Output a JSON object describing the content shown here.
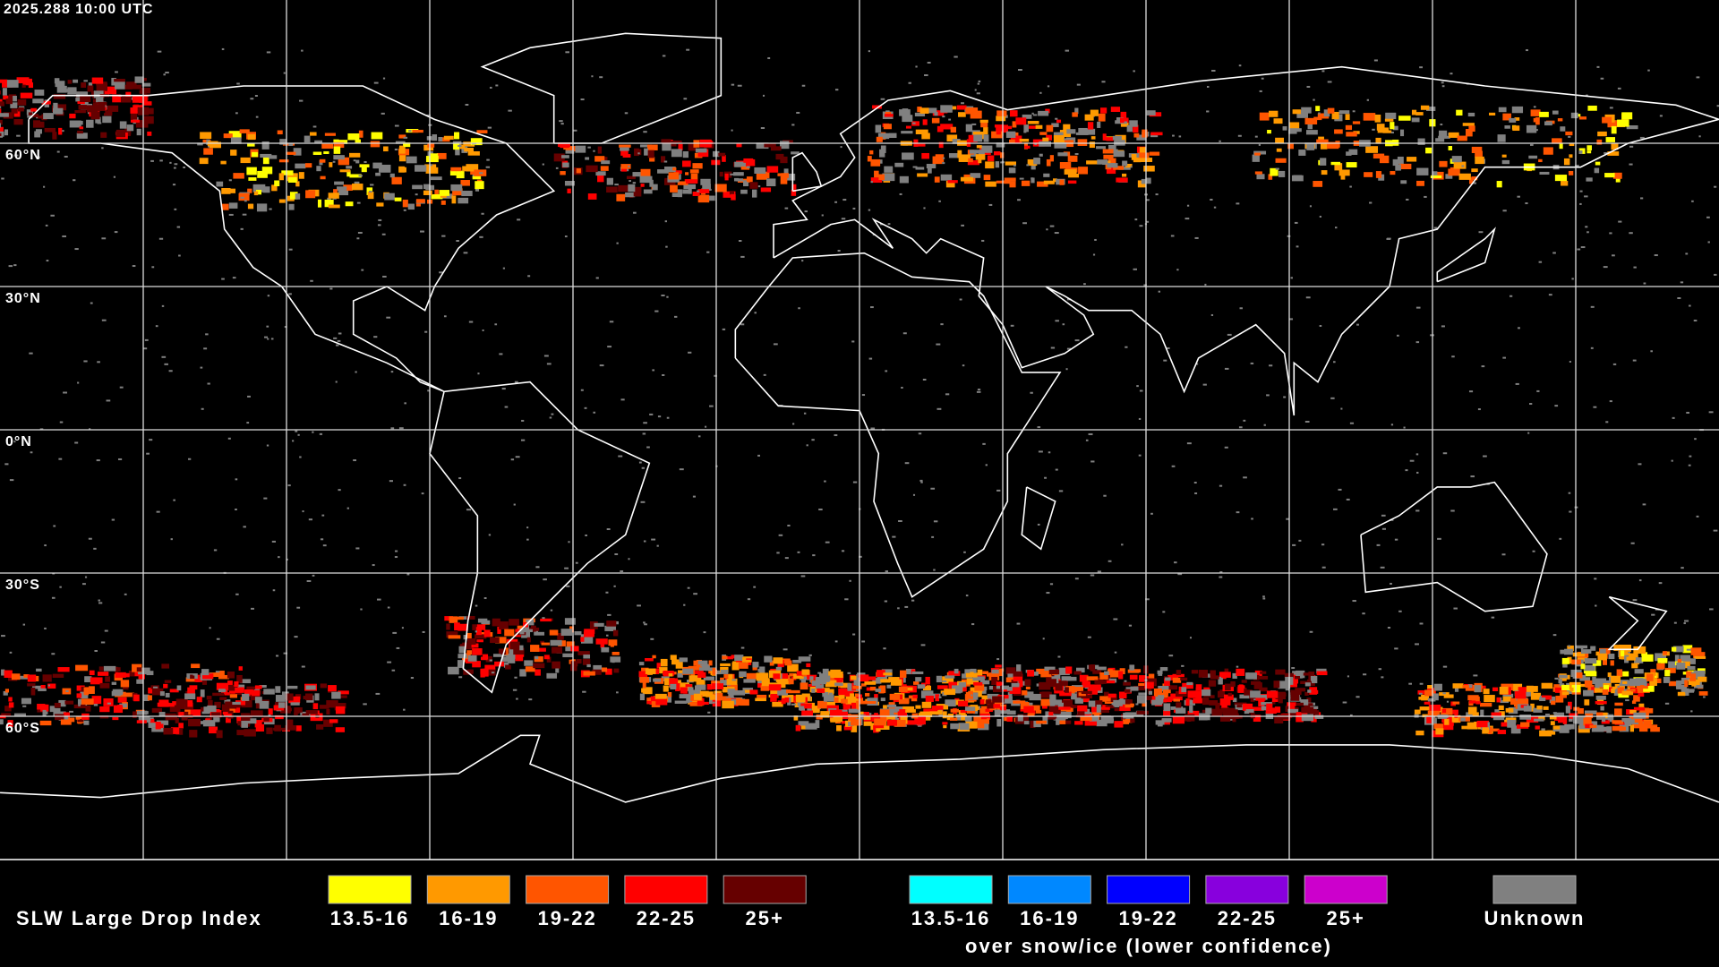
{
  "header": {
    "timestamp": "2025.288 10:00 UTC"
  },
  "grid": {
    "lat_labels": [
      "60°N",
      "30°N",
      "0°N",
      "30°S",
      "60°S"
    ]
  },
  "legend": {
    "title": "SLW Large Drop Index",
    "caption": "over snow/ice (lower confidence)",
    "groups": [
      {
        "items": [
          {
            "label": "13.5-16",
            "color": "#ffff00"
          },
          {
            "label": "16-19",
            "color": "#ff9900"
          },
          {
            "label": "19-22",
            "color": "#ff5500"
          },
          {
            "label": "22-25",
            "color": "#ff0000"
          },
          {
            "label": "25+",
            "color": "#660000"
          }
        ]
      },
      {
        "items": [
          {
            "label": "13.5-16",
            "color": "#00ffff"
          },
          {
            "label": "16-19",
            "color": "#0088ff"
          },
          {
            "label": "19-22",
            "color": "#0000ff"
          },
          {
            "label": "22-25",
            "color": "#8800dd"
          },
          {
            "label": "25+",
            "color": "#cc00cc"
          }
        ]
      },
      {
        "items": [
          {
            "label": "Unknown",
            "color": "#808080"
          }
        ]
      }
    ]
  }
}
